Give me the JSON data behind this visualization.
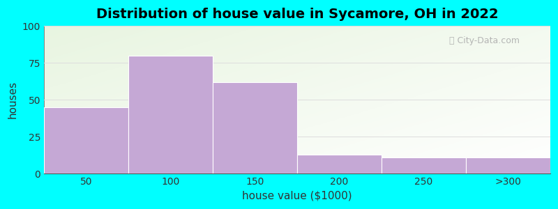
{
  "categories": [
    "50",
    "100",
    "150",
    "200",
    "250",
    ">300"
  ],
  "values": [
    45,
    80,
    62,
    13,
    11,
    11
  ],
  "bar_color": "#C5A8D5",
  "bar_edgecolor": "#C5A8D5",
  "title": "Distribution of house value in Sycamore, OH in 2022",
  "xlabel": "house value ($1000)",
  "ylabel": "houses",
  "ylim": [
    0,
    100
  ],
  "yticks": [
    0,
    25,
    50,
    75,
    100
  ],
  "bg_outer": "#00FFFF",
  "title_fontsize": 14,
  "label_fontsize": 11,
  "tick_fontsize": 10,
  "watermark": "City-Data.com",
  "bar_width": 1.0
}
